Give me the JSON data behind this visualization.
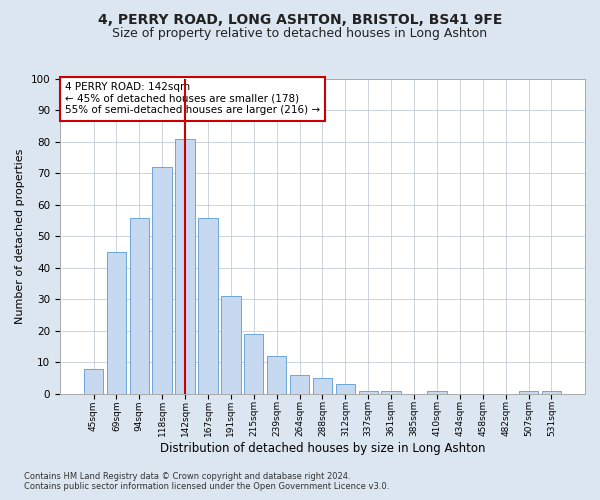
{
  "title1": "4, PERRY ROAD, LONG ASHTON, BRISTOL, BS41 9FE",
  "title2": "Size of property relative to detached houses in Long Ashton",
  "xlabel": "Distribution of detached houses by size in Long Ashton",
  "ylabel": "Number of detached properties",
  "categories": [
    "45sqm",
    "69sqm",
    "94sqm",
    "118sqm",
    "142sqm",
    "167sqm",
    "191sqm",
    "215sqm",
    "239sqm",
    "264sqm",
    "288sqm",
    "312sqm",
    "337sqm",
    "361sqm",
    "385sqm",
    "410sqm",
    "434sqm",
    "458sqm",
    "482sqm",
    "507sqm",
    "531sqm"
  ],
  "values": [
    8,
    45,
    56,
    72,
    81,
    56,
    31,
    19,
    12,
    6,
    5,
    3,
    1,
    1,
    0,
    1,
    0,
    0,
    0,
    1,
    1
  ],
  "bar_color": "#c6d9f0",
  "bar_edge_color": "#5b9bd5",
  "vline_x": 4,
  "vline_color": "#cc0000",
  "annotation_text": "4 PERRY ROAD: 142sqm\n← 45% of detached houses are smaller (178)\n55% of semi-detached houses are larger (216) →",
  "annotation_box_edge": "#cc0000",
  "annotation_fontsize": 7.5,
  "footer1": "Contains HM Land Registry data © Crown copyright and database right 2024.",
  "footer2": "Contains public sector information licensed under the Open Government Licence v3.0.",
  "bg_color": "#dce6f1",
  "plot_bg_color": "#ffffff",
  "title1_fontsize": 10,
  "title2_fontsize": 9,
  "ylabel_fontsize": 8,
  "xlabel_fontsize": 8.5,
  "ylim": [
    0,
    100
  ],
  "yticks": [
    0,
    10,
    20,
    30,
    40,
    50,
    60,
    70,
    80,
    90,
    100
  ]
}
